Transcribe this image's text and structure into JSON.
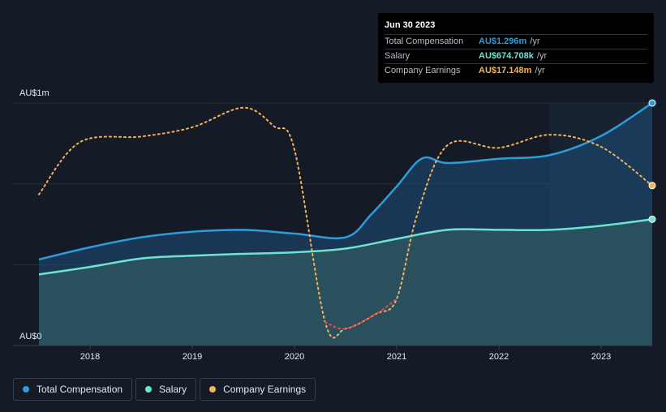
{
  "tooltip": {
    "date": "Jun 30 2023",
    "rows": [
      {
        "label": "Total Compensation",
        "value": "AU$1.296m",
        "unit": "/yr",
        "color": "#2d9cdb"
      },
      {
        "label": "Salary",
        "value": "AU$674.708k",
        "unit": "/yr",
        "color": "#6de3d3"
      },
      {
        "label": "Company Earnings",
        "value": "AU$17.148m",
        "unit": "/yr",
        "color": "#f2b35b"
      }
    ]
  },
  "legend": [
    {
      "label": "Total Compensation",
      "color": "#2d9cdb"
    },
    {
      "label": "Salary",
      "color": "#6de3d3"
    },
    {
      "label": "Company Earnings",
      "color": "#f2b35b"
    }
  ],
  "chart_data": {
    "type": "area",
    "y_top_label": "AU$1m",
    "y_bottom_label": "AU$0",
    "ylim": [
      0,
      1296000
    ],
    "xlim": [
      2017.5,
      2023.5
    ],
    "x_ticks": [
      {
        "value": 2018,
        "label": "2018"
      },
      {
        "value": 2019,
        "label": "2019"
      },
      {
        "value": 2020,
        "label": "2020"
      },
      {
        "value": 2021,
        "label": "2021"
      },
      {
        "value": 2022,
        "label": "2022"
      },
      {
        "value": 2023,
        "label": "2023"
      }
    ],
    "gridlines": [
      0,
      432000,
      864000,
      1296000
    ],
    "highlight_start": 2022.5,
    "series": [
      {
        "name": "Total Compensation",
        "color": "#2d9cdb",
        "points": [
          [
            2017.5,
            460000
          ],
          [
            2018.0,
            525000
          ],
          [
            2018.5,
            578000
          ],
          [
            2019.0,
            608000
          ],
          [
            2019.5,
            618000
          ],
          [
            2020.0,
            598000
          ],
          [
            2020.5,
            578000
          ],
          [
            2020.75,
            700000
          ],
          [
            2021.0,
            850000
          ],
          [
            2021.25,
            1000000
          ],
          [
            2021.5,
            975000
          ],
          [
            2022.0,
            998000
          ],
          [
            2022.5,
            1018000
          ],
          [
            2023.0,
            1120000
          ],
          [
            2023.5,
            1296000
          ]
        ]
      },
      {
        "name": "Salary",
        "color": "#6de3d3",
        "points": [
          [
            2017.5,
            380000
          ],
          [
            2018.0,
            420000
          ],
          [
            2018.5,
            465000
          ],
          [
            2019.0,
            480000
          ],
          [
            2019.5,
            490000
          ],
          [
            2020.0,
            498000
          ],
          [
            2020.5,
            518000
          ],
          [
            2021.0,
            570000
          ],
          [
            2021.5,
            618000
          ],
          [
            2022.0,
            618000
          ],
          [
            2022.5,
            618000
          ],
          [
            2023.0,
            640000
          ],
          [
            2023.5,
            674708
          ]
        ]
      },
      {
        "name": "Company Earnings",
        "color": "#f2b35b",
        "negative_color": "#e8474f",
        "scale_max": 26000000,
        "points": [
          [
            2017.5,
            16200000
          ],
          [
            2017.9,
            21800000
          ],
          [
            2018.5,
            22400000
          ],
          [
            2019.0,
            23400000
          ],
          [
            2019.5,
            25500000
          ],
          [
            2019.8,
            23500000
          ],
          [
            2020.0,
            21000000
          ],
          [
            2020.3,
            2500000
          ],
          [
            2020.5,
            1800000
          ],
          [
            2020.8,
            3400000
          ],
          [
            2021.0,
            5000000
          ],
          [
            2021.2,
            14000000
          ],
          [
            2021.5,
            21500000
          ],
          [
            2022.0,
            21200000
          ],
          [
            2022.5,
            22600000
          ],
          [
            2023.0,
            21300000
          ],
          [
            2023.5,
            17148000
          ]
        ]
      }
    ]
  }
}
